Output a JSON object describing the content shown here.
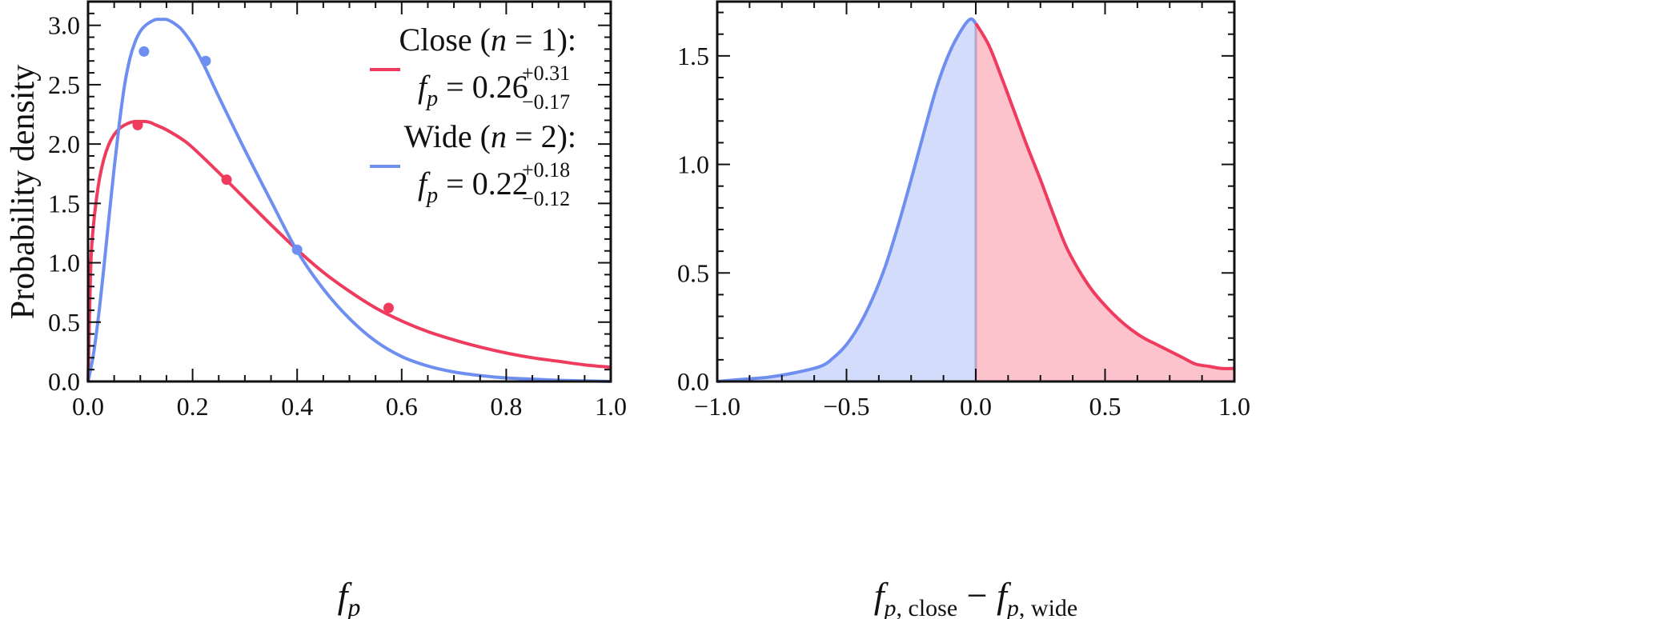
{
  "chart_data": [
    {
      "type": "line",
      "panel": "left",
      "xlabel": "f_p",
      "ylabel": "Probability density",
      "xlim": [
        0,
        1
      ],
      "ylim": [
        0,
        3.2
      ],
      "xticks": [
        0.0,
        0.2,
        0.4,
        0.6,
        0.8,
        1.0
      ],
      "xtick_labels": [
        "0.0",
        "0.2",
        "0.4",
        "0.6",
        "0.8",
        "1.0"
      ],
      "yticks": [
        0.0,
        0.5,
        1.0,
        1.5,
        2.0,
        2.5,
        3.0
      ],
      "ytick_labels": [
        "0.0",
        "0.5",
        "1.0",
        "1.5",
        "2.0",
        "2.5",
        "3.0"
      ],
      "series": [
        {
          "name": "Close (n=1)",
          "label_word": "Close",
          "label_n": "1",
          "color": "#ef3b5e",
          "median_value": "0.26",
          "err_plus": "+0.31",
          "err_minus": "−0.17",
          "x": [
            0.0,
            0.005,
            0.01,
            0.02,
            0.03,
            0.04,
            0.05,
            0.06,
            0.07,
            0.08,
            0.09,
            0.1,
            0.11,
            0.12,
            0.13,
            0.15,
            0.18,
            0.2,
            0.25,
            0.3,
            0.35,
            0.4,
            0.45,
            0.5,
            0.55,
            0.6,
            0.65,
            0.7,
            0.75,
            0.8,
            0.85,
            0.9,
            0.95,
            1.0
          ],
          "y": [
            0.0,
            0.95,
            1.3,
            1.66,
            1.87,
            2.0,
            2.08,
            2.13,
            2.16,
            2.18,
            2.19,
            2.19,
            2.19,
            2.18,
            2.16,
            2.12,
            2.04,
            1.97,
            1.76,
            1.54,
            1.32,
            1.11,
            0.92,
            0.76,
            0.62,
            0.51,
            0.42,
            0.35,
            0.29,
            0.24,
            0.2,
            0.17,
            0.14,
            0.12
          ],
          "markers": [
            [
              0.095,
              2.16
            ],
            [
              0.265,
              1.7
            ],
            [
              0.575,
              0.62
            ]
          ]
        },
        {
          "name": "Wide (n=2)",
          "label_word": "Wide",
          "label_n": "2",
          "color": "#6e8ff0",
          "median_value": "0.22",
          "err_plus": "+0.18",
          "err_minus": "−0.12",
          "x": [
            0.0,
            0.01,
            0.02,
            0.03,
            0.04,
            0.05,
            0.06,
            0.07,
            0.08,
            0.09,
            0.1,
            0.11,
            0.12,
            0.13,
            0.14,
            0.15,
            0.16,
            0.17,
            0.18,
            0.2,
            0.22,
            0.25,
            0.3,
            0.35,
            0.4,
            0.45,
            0.5,
            0.55,
            0.6,
            0.65,
            0.7,
            0.75,
            0.8,
            0.85,
            0.9,
            0.95,
            1.0
          ],
          "y": [
            0.0,
            0.22,
            0.55,
            0.95,
            1.38,
            1.8,
            2.18,
            2.5,
            2.72,
            2.86,
            2.95,
            3.0,
            3.03,
            3.05,
            3.05,
            3.05,
            3.03,
            3.0,
            2.96,
            2.84,
            2.68,
            2.4,
            1.95,
            1.52,
            1.1,
            0.78,
            0.53,
            0.34,
            0.21,
            0.13,
            0.08,
            0.05,
            0.03,
            0.02,
            0.01,
            0.005,
            0.0
          ],
          "markers": [
            [
              0.107,
              2.78
            ],
            [
              0.225,
              2.7
            ],
            [
              0.4,
              1.11
            ]
          ]
        }
      ]
    },
    {
      "type": "area",
      "panel": "right",
      "xlabel": "f_p,close − f_p,wide",
      "xlim": [
        -1,
        1
      ],
      "ylim": [
        0,
        1.75
      ],
      "xticks": [
        -1.0,
        -0.5,
        0.0,
        0.5,
        1.0
      ],
      "xtick_labels": [
        "−1.0",
        "−0.5",
        "0.0",
        "0.5",
        "1.0"
      ],
      "yticks": [
        0.0,
        0.5,
        1.0,
        1.5
      ],
      "ytick_labels": [
        "0.0",
        "0.5",
        "1.0",
        "1.5"
      ],
      "split_at": 0.0,
      "colors": {
        "negative_line": "#6e8ff0",
        "negative_fill": "#d3dcfb",
        "positive_line": "#ef3b5e",
        "positive_fill": "#fdc3cd",
        "divider": "#b8a6c8"
      },
      "x": [
        -1.0,
        -0.9,
        -0.8,
        -0.7,
        -0.6,
        -0.55,
        -0.5,
        -0.45,
        -0.4,
        -0.35,
        -0.3,
        -0.25,
        -0.2,
        -0.15,
        -0.1,
        -0.05,
        -0.02,
        0.0,
        0.05,
        0.1,
        0.15,
        0.2,
        0.25,
        0.3,
        0.35,
        0.4,
        0.45,
        0.5,
        0.55,
        0.6,
        0.65,
        0.7,
        0.75,
        0.8,
        0.85,
        0.9,
        0.95,
        1.0
      ],
      "y": [
        0.0,
        0.01,
        0.02,
        0.04,
        0.07,
        0.11,
        0.17,
        0.26,
        0.38,
        0.53,
        0.72,
        0.93,
        1.15,
        1.36,
        1.52,
        1.63,
        1.67,
        1.65,
        1.55,
        1.4,
        1.24,
        1.08,
        0.93,
        0.77,
        0.62,
        0.51,
        0.42,
        0.35,
        0.29,
        0.24,
        0.2,
        0.17,
        0.14,
        0.11,
        0.08,
        0.07,
        0.06,
        0.06
      ]
    }
  ]
}
